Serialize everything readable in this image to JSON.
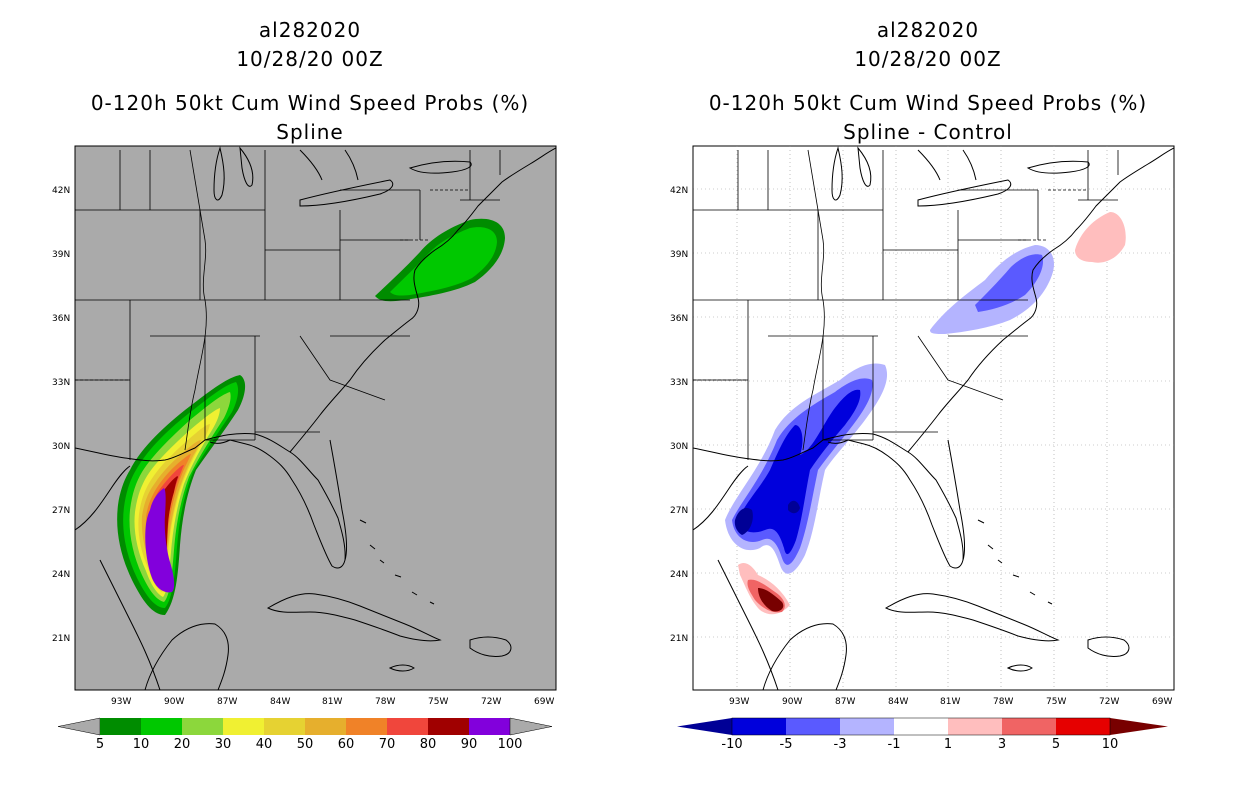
{
  "left_panel": {
    "storm_id": "al282020",
    "date": "10/28/20 00Z",
    "product": "0-120h 50kt Cum Wind Speed Probs (%)",
    "subtitle": "Spline",
    "colorbar": {
      "labels": [
        "5",
        "10",
        "20",
        "30",
        "40",
        "50",
        "60",
        "70",
        "80",
        "90",
        "100"
      ],
      "colors": [
        "#008c00",
        "#00c800",
        "#8cd73c",
        "#f0f032",
        "#e6d232",
        "#e6af2d",
        "#f08228",
        "#f0463c",
        "#a00000",
        "#8200dc"
      ],
      "end_color": "#aaaaaa"
    }
  },
  "right_panel": {
    "storm_id": "al282020",
    "date": "10/28/20 00Z",
    "product": "0-120h 50kt Cum Wind Speed Probs (%)",
    "subtitle": "Spline - Control",
    "colorbar": {
      "labels": [
        "-10",
        "-5",
        "-3",
        "-1",
        "1",
        "3",
        "5",
        "10"
      ],
      "colors": [
        "#0000dc",
        "#5a5aff",
        "#b4b4ff",
        "#ffffff",
        "#ffbebe",
        "#f06464",
        "#e60000"
      ],
      "low_color": "#000096",
      "high_color": "#780000"
    }
  },
  "axes": {
    "lat_labels": [
      "42N",
      "39N",
      "36N",
      "33N",
      "30N",
      "27N",
      "24N",
      "21N"
    ],
    "lon_labels": [
      "93W",
      "90W",
      "87W",
      "84W",
      "81W",
      "78W",
      "75W",
      "72W",
      "69W"
    ]
  }
}
